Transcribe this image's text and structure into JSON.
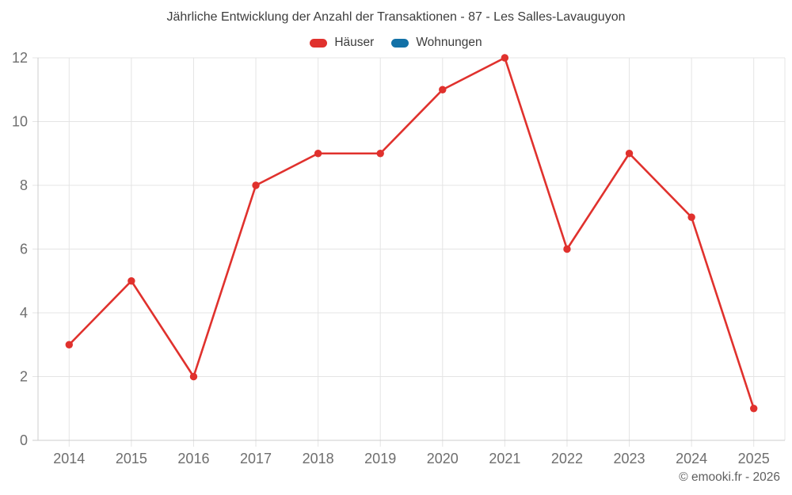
{
  "footer": {
    "copyright": "© emooki.fr - 2026"
  },
  "colors": {
    "grid": "#e4e4e4",
    "axis": "#cccccc",
    "tick_text": "#6e6e6e",
    "title_text": "#3d3d3d",
    "copyright_text": "#5f5f5f",
    "background": "#ffffff"
  },
  "chart_data": {
    "type": "line",
    "title": "Jährliche Entwicklung der Anzahl der Transaktionen - 87 - Les Salles-Lavauguyon",
    "categories": [
      "2014",
      "2015",
      "2016",
      "2017",
      "2018",
      "2019",
      "2020",
      "2021",
      "2022",
      "2023",
      "2024",
      "2025"
    ],
    "series": [
      {
        "name": "Häuser",
        "color": "#e0312d",
        "values": [
          3,
          5,
          2,
          8,
          9,
          9,
          11,
          12,
          6,
          9,
          7,
          1
        ]
      },
      {
        "name": "Wohnungen",
        "color": "#1271a7",
        "values": []
      }
    ],
    "xlabel": "",
    "ylabel": "",
    "ylim": [
      0,
      12
    ],
    "yticks": [
      0,
      2,
      4,
      6,
      8,
      10,
      12
    ],
    "grid": true,
    "legend_position": "top",
    "marker_radius": 4.7,
    "line_width": 2.6
  }
}
